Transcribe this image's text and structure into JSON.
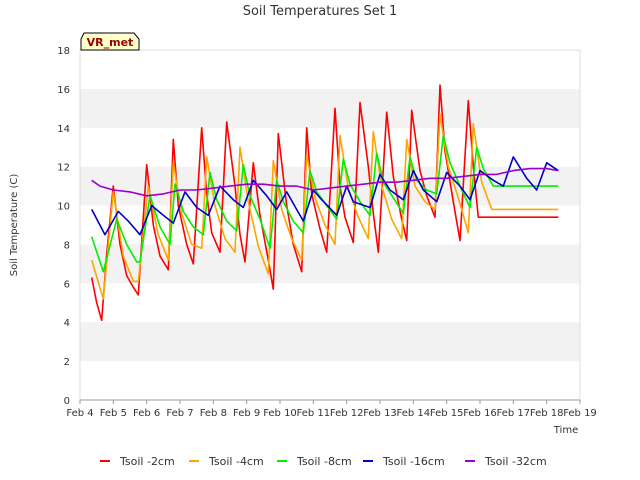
{
  "chart_data": {
    "type": "line",
    "title": "Soil Temperatures Set 1",
    "xlabel": "Time",
    "ylabel": "Soil Temperature (C)",
    "xlim": [
      4,
      19
    ],
    "ylim": [
      0,
      18
    ],
    "x_ticks": [
      4,
      5,
      6,
      7,
      8,
      9,
      10,
      11,
      12,
      13,
      14,
      15,
      16,
      17,
      18,
      19
    ],
    "x_tick_labels": [
      "Feb 4",
      "Feb 5",
      "Feb 6",
      "Feb 7",
      "Feb 8",
      "Feb 9",
      "Feb 10",
      "Feb 11",
      "Feb 12",
      "Feb 13",
      "Feb 14",
      "Feb 15",
      "Feb 16",
      "Feb 17",
      "Feb 18",
      "Feb 19"
    ],
    "y_ticks": [
      0,
      2,
      4,
      6,
      8,
      10,
      12,
      14,
      16,
      18
    ],
    "grid": "horizontal alternating bands",
    "legend_position": "bottom",
    "annotation": "VR_met",
    "series": [
      {
        "name": "Tsoil -2cm",
        "color": "#ff0000",
        "x": [
          4.35,
          4.5,
          4.65,
          4.8,
          5.0,
          5.2,
          5.4,
          5.6,
          5.75,
          6.0,
          6.2,
          6.4,
          6.65,
          6.8,
          6.95,
          7.2,
          7.4,
          7.65,
          7.8,
          7.95,
          8.2,
          8.4,
          8.65,
          8.8,
          8.95,
          9.2,
          9.4,
          9.65,
          9.8,
          9.95,
          10.2,
          10.4,
          10.65,
          10.8,
          10.95,
          11.2,
          11.4,
          11.65,
          11.8,
          11.95,
          12.2,
          12.4,
          12.65,
          12.8,
          12.95,
          13.2,
          13.4,
          13.65,
          13.8,
          13.95,
          14.2,
          14.4,
          14.65,
          14.8,
          14.95,
          15.2,
          15.4,
          15.65,
          15.8,
          15.95,
          16.2,
          16.4,
          16.65,
          16.8,
          16.95,
          17.2,
          17.4,
          17.65,
          17.8,
          17.95,
          18.2,
          18.35
        ],
        "y": [
          6.3,
          5.0,
          4.1,
          7.5,
          11.0,
          8.0,
          6.4,
          5.8,
          5.4,
          12.1,
          9.0,
          7.4,
          6.7,
          13.4,
          10.0,
          8.0,
          7.0,
          14.0,
          10.6,
          8.6,
          7.6,
          14.3,
          11.0,
          8.5,
          7.1,
          12.2,
          9.5,
          7.2,
          5.7,
          13.7,
          10.0,
          8.0,
          6.6,
          14.0,
          10.6,
          8.8,
          7.6,
          15.0,
          11.0,
          9.4,
          8.1,
          15.3,
          12.0,
          9.6,
          7.6,
          14.8,
          11.5,
          9.3,
          8.2,
          14.9,
          11.8,
          10.5,
          9.4,
          16.2,
          12.8,
          10.2,
          8.2,
          15.4,
          12.0,
          9.4,
          9.4,
          9.4,
          9.4,
          9.4,
          9.4,
          9.4,
          9.4,
          9.4,
          9.4,
          9.4,
          9.4,
          9.4
        ]
      },
      {
        "name": "Tsoil -4cm",
        "color": "#ffa500",
        "x": [
          4.35,
          4.7,
          5.0,
          5.3,
          5.6,
          5.75,
          6.05,
          6.35,
          6.65,
          6.8,
          7.05,
          7.35,
          7.65,
          7.8,
          8.05,
          8.35,
          8.65,
          8.8,
          9.05,
          9.35,
          9.65,
          9.8,
          10.05,
          10.35,
          10.65,
          10.8,
          11.05,
          11.35,
          11.65,
          11.8,
          12.05,
          12.35,
          12.65,
          12.8,
          13.05,
          13.35,
          13.65,
          13.8,
          14.05,
          14.35,
          14.65,
          14.8,
          15.05,
          15.35,
          15.65,
          15.8,
          16.05,
          16.35,
          16.65,
          16.8,
          17.05,
          17.35,
          17.65,
          17.8,
          18.05,
          18.35
        ],
        "y": [
          7.2,
          5.2,
          10.7,
          7.4,
          6.1,
          6.1,
          11.0,
          8.5,
          7.2,
          12.2,
          9.6,
          8.0,
          7.8,
          12.5,
          10.0,
          8.3,
          7.6,
          13.0,
          10.2,
          7.9,
          6.5,
          12.3,
          9.8,
          8.3,
          7.2,
          12.6,
          10.4,
          9.0,
          8.0,
          13.6,
          10.9,
          9.4,
          8.3,
          13.8,
          11.0,
          9.3,
          8.3,
          13.4,
          11.0,
          10.2,
          9.8,
          14.7,
          12.0,
          10.4,
          8.6,
          14.2,
          11.2,
          9.8,
          9.8,
          9.8,
          9.8,
          9.8,
          9.8,
          9.8,
          9.8,
          9.8
        ]
      },
      {
        "name": "Tsoil -8cm",
        "color": "#00ee00",
        "x": [
          4.35,
          4.7,
          5.1,
          5.4,
          5.7,
          5.8,
          6.1,
          6.4,
          6.7,
          6.85,
          7.1,
          7.4,
          7.7,
          7.9,
          8.1,
          8.4,
          8.7,
          8.9,
          9.1,
          9.4,
          9.7,
          9.9,
          10.1,
          10.4,
          10.7,
          10.9,
          11.1,
          11.4,
          11.7,
          11.9,
          12.1,
          12.4,
          12.7,
          12.9,
          13.1,
          13.4,
          13.7,
          13.9,
          14.1,
          14.4,
          14.7,
          14.9,
          15.1,
          15.4,
          15.7,
          15.9,
          16.1,
          16.4,
          16.7,
          16.9,
          17.1,
          17.4,
          17.7,
          17.9,
          18.1,
          18.35
        ],
        "y": [
          8.4,
          6.6,
          9.3,
          8.0,
          7.1,
          7.1,
          10.5,
          8.9,
          8.0,
          11.1,
          9.7,
          8.9,
          8.5,
          11.7,
          10.3,
          9.2,
          8.7,
          12.1,
          10.5,
          9.3,
          7.8,
          11.3,
          10.2,
          9.2,
          8.6,
          11.8,
          10.7,
          10.0,
          9.3,
          12.4,
          11.1,
          10.2,
          9.5,
          12.7,
          11.2,
          10.4,
          9.6,
          12.5,
          11.3,
          10.8,
          10.6,
          13.6,
          12.2,
          11.0,
          9.9,
          13.0,
          11.9,
          11.0,
          11.0,
          11.0,
          11.0,
          11.0,
          11.0,
          11.0,
          11.0,
          11.0
        ]
      },
      {
        "name": "Tsoil -16cm",
        "color": "#0000cc",
        "x": [
          4.35,
          4.75,
          5.15,
          5.45,
          5.8,
          6.15,
          6.5,
          6.8,
          7.15,
          7.5,
          7.85,
          8.2,
          8.6,
          8.9,
          9.2,
          9.6,
          9.9,
          10.2,
          10.7,
          11.0,
          11.2,
          11.7,
          12.0,
          12.2,
          12.7,
          13.0,
          13.3,
          13.7,
          14.0,
          14.3,
          14.7,
          15.0,
          15.4,
          15.7,
          16.0,
          16.4,
          16.7,
          17.0,
          17.4,
          17.7,
          18.0,
          18.35
        ],
        "y": [
          9.8,
          8.5,
          9.7,
          9.2,
          8.5,
          10.0,
          9.5,
          9.1,
          10.7,
          9.9,
          9.5,
          11.0,
          10.3,
          9.9,
          11.3,
          10.5,
          9.8,
          10.7,
          9.2,
          10.8,
          10.4,
          9.5,
          11.0,
          10.2,
          9.9,
          11.6,
          10.8,
          10.3,
          11.8,
          10.8,
          10.2,
          11.7,
          11.0,
          10.3,
          11.8,
          11.3,
          11.0,
          12.5,
          11.4,
          10.8,
          12.2,
          11.8
        ]
      },
      {
        "name": "Tsoil -32cm",
        "color": "#9900cc",
        "x": [
          4.35,
          4.6,
          5.0,
          5.5,
          6.0,
          6.5,
          7.0,
          7.5,
          8.0,
          8.5,
          9.0,
          9.5,
          10.0,
          10.5,
          11.0,
          11.5,
          12.0,
          12.5,
          13.0,
          13.5,
          14.0,
          14.5,
          15.0,
          15.5,
          16.0,
          16.5,
          17.0,
          17.5,
          18.0,
          18.35
        ],
        "y": [
          11.3,
          11.0,
          10.8,
          10.7,
          10.5,
          10.6,
          10.8,
          10.8,
          10.9,
          11.0,
          11.1,
          11.1,
          11.0,
          11.0,
          10.8,
          10.9,
          11.0,
          11.1,
          11.2,
          11.2,
          11.3,
          11.4,
          11.4,
          11.5,
          11.6,
          11.6,
          11.8,
          11.9,
          11.9,
          11.8
        ]
      }
    ]
  }
}
